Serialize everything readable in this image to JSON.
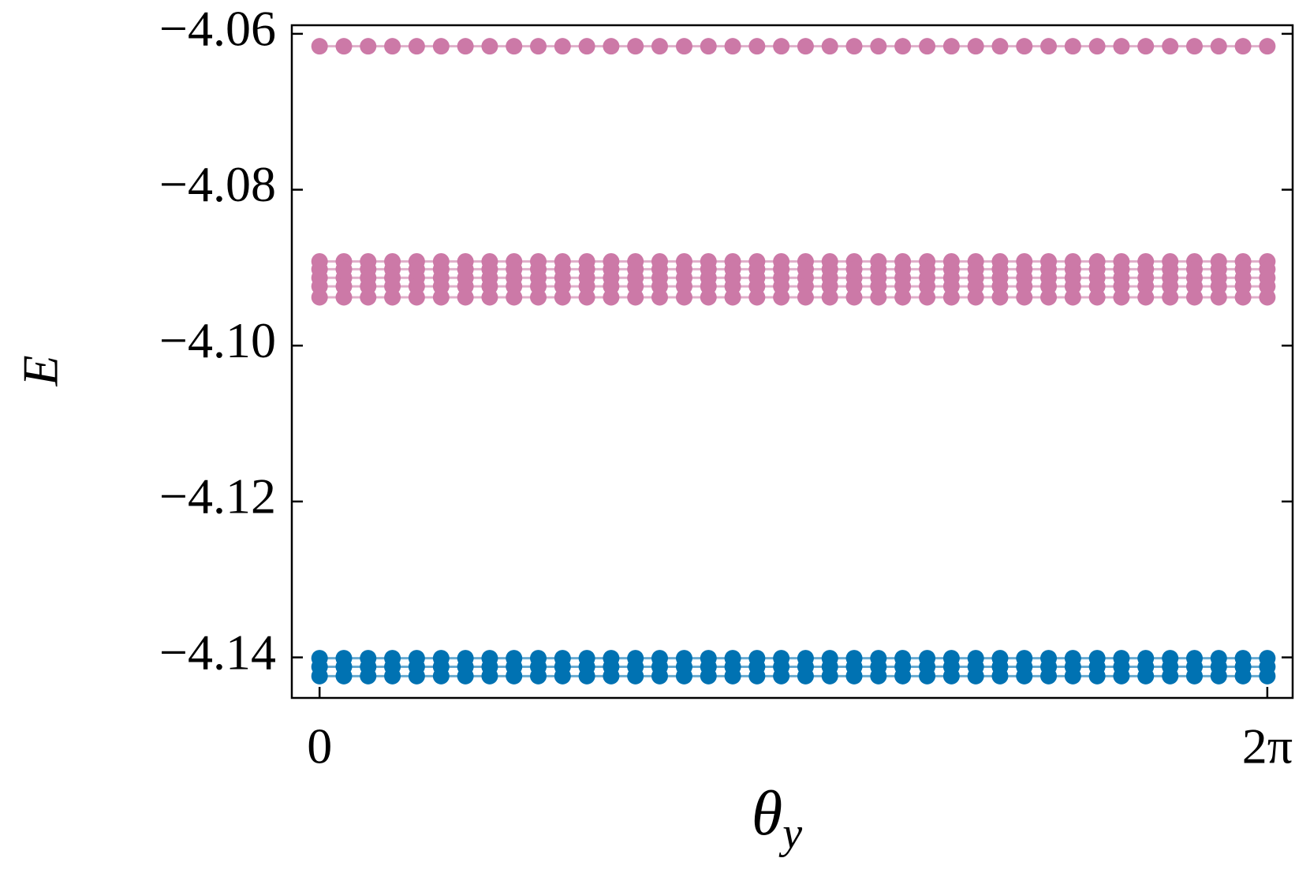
{
  "chart_data": {
    "type": "line",
    "ylabel": "E",
    "xlabel": {
      "symbol": "θ",
      "subscript": "y"
    },
    "x": [
      0,
      0.161,
      0.322,
      0.483,
      0.644,
      0.806,
      0.967,
      1.128,
      1.289,
      1.45,
      1.611,
      1.772,
      1.933,
      2.094,
      2.255,
      2.417,
      2.578,
      2.739,
      2.9,
      3.061,
      3.222,
      3.383,
      3.544,
      3.705,
      3.866,
      4.028,
      4.189,
      4.35,
      4.511,
      4.672,
      4.833,
      4.994,
      5.155,
      5.316,
      5.477,
      5.639,
      5.8,
      5.961,
      6.122,
      6.283
    ],
    "xlim": [
      -0.184,
      6.451
    ],
    "xticks": [
      0,
      {
        "value": 6.283,
        "label": "2π"
      }
    ],
    "ylim": [
      -4.1452,
      -4.0589
    ],
    "yticks": [
      {
        "value": -4.06,
        "label": "−4.06"
      },
      {
        "value": -4.08,
        "label": "−4.08"
      },
      {
        "value": -4.1,
        "label": "−4.10"
      },
      {
        "value": -4.12,
        "label": "−4.12"
      },
      {
        "value": -4.14,
        "label": "−4.14"
      }
    ],
    "grid": false,
    "series": [
      {
        "color": "#cc79a7",
        "values": [
          -4.0616,
          -4.0616,
          -4.0616,
          -4.0616,
          -4.0616,
          -4.0616,
          -4.0616,
          -4.0616,
          -4.0616,
          -4.0616,
          -4.0616,
          -4.0616,
          -4.0616,
          -4.0616,
          -4.0616,
          -4.0616,
          -4.0616,
          -4.0616,
          -4.0616,
          -4.0616,
          -4.0616,
          -4.0616,
          -4.0616,
          -4.0616,
          -4.0616,
          -4.0616,
          -4.0616,
          -4.0616,
          -4.0616,
          -4.0616,
          -4.0616,
          -4.0616,
          -4.0616,
          -4.0616,
          -4.0616,
          -4.0616,
          -4.0616,
          -4.0616,
          -4.0616,
          -4.0616
        ]
      },
      {
        "color": "#cc79a7",
        "values": [
          -4.0892,
          -4.0892,
          -4.0892,
          -4.0892,
          -4.0892,
          -4.0892,
          -4.0892,
          -4.0892,
          -4.0892,
          -4.0892,
          -4.0892,
          -4.0892,
          -4.0892,
          -4.0892,
          -4.0892,
          -4.0892,
          -4.0892,
          -4.0892,
          -4.0892,
          -4.0892,
          -4.0892,
          -4.0892,
          -4.0892,
          -4.0892,
          -4.0892,
          -4.0892,
          -4.0892,
          -4.0892,
          -4.0892,
          -4.0892,
          -4.0892,
          -4.0892,
          -4.0892,
          -4.0892,
          -4.0892,
          -4.0892,
          -4.0892,
          -4.0892,
          -4.0892,
          -4.0892
        ]
      },
      {
        "color": "#cc79a7",
        "values": [
          -4.0902,
          -4.0902,
          -4.0902,
          -4.0902,
          -4.0902,
          -4.0902,
          -4.0902,
          -4.0902,
          -4.0902,
          -4.0902,
          -4.0902,
          -4.0902,
          -4.0902,
          -4.0902,
          -4.0902,
          -4.0902,
          -4.0902,
          -4.0902,
          -4.0902,
          -4.0902,
          -4.0902,
          -4.0902,
          -4.0902,
          -4.0902,
          -4.0902,
          -4.0902,
          -4.0902,
          -4.0902,
          -4.0902,
          -4.0902,
          -4.0902,
          -4.0902,
          -4.0902,
          -4.0902,
          -4.0902,
          -4.0902,
          -4.0902,
          -4.0902,
          -4.0902,
          -4.0902
        ]
      },
      {
        "color": "#cc79a7",
        "values": [
          -4.0913,
          -4.0913,
          -4.0913,
          -4.0913,
          -4.0913,
          -4.0913,
          -4.0913,
          -4.0913,
          -4.0913,
          -4.0913,
          -4.0913,
          -4.0913,
          -4.0913,
          -4.0913,
          -4.0913,
          -4.0913,
          -4.0913,
          -4.0913,
          -4.0913,
          -4.0913,
          -4.0913,
          -4.0913,
          -4.0913,
          -4.0913,
          -4.0913,
          -4.0913,
          -4.0913,
          -4.0913,
          -4.0913,
          -4.0913,
          -4.0913,
          -4.0913,
          -4.0913,
          -4.0913,
          -4.0913,
          -4.0913,
          -4.0913,
          -4.0913,
          -4.0913,
          -4.0913
        ]
      },
      {
        "color": "#cc79a7",
        "values": [
          -4.0924,
          -4.0924,
          -4.0924,
          -4.0924,
          -4.0924,
          -4.0924,
          -4.0924,
          -4.0924,
          -4.0924,
          -4.0924,
          -4.0924,
          -4.0924,
          -4.0924,
          -4.0924,
          -4.0924,
          -4.0924,
          -4.0924,
          -4.0924,
          -4.0924,
          -4.0924,
          -4.0924,
          -4.0924,
          -4.0924,
          -4.0924,
          -4.0924,
          -4.0924,
          -4.0924,
          -4.0924,
          -4.0924,
          -4.0924,
          -4.0924,
          -4.0924,
          -4.0924,
          -4.0924,
          -4.0924,
          -4.0924,
          -4.0924,
          -4.0924,
          -4.0924,
          -4.0924
        ]
      },
      {
        "color": "#cc79a7",
        "values": [
          -4.0938,
          -4.0938,
          -4.0938,
          -4.0938,
          -4.0938,
          -4.0938,
          -4.0938,
          -4.0938,
          -4.0938,
          -4.0938,
          -4.0938,
          -4.0938,
          -4.0938,
          -4.0938,
          -4.0938,
          -4.0938,
          -4.0938,
          -4.0938,
          -4.0938,
          -4.0938,
          -4.0938,
          -4.0938,
          -4.0938,
          -4.0938,
          -4.0938,
          -4.0938,
          -4.0938,
          -4.0938,
          -4.0938,
          -4.0938,
          -4.0938,
          -4.0938,
          -4.0938,
          -4.0938,
          -4.0938,
          -4.0938,
          -4.0938,
          -4.0938,
          -4.0938,
          -4.0938
        ]
      },
      {
        "color": "#0072b2",
        "values": [
          -4.1401,
          -4.1401,
          -4.1401,
          -4.1401,
          -4.1401,
          -4.1401,
          -4.1401,
          -4.1401,
          -4.1401,
          -4.1401,
          -4.1401,
          -4.1401,
          -4.1401,
          -4.1401,
          -4.1401,
          -4.1401,
          -4.1401,
          -4.1401,
          -4.1401,
          -4.1401,
          -4.1401,
          -4.1401,
          -4.1401,
          -4.1401,
          -4.1401,
          -4.1401,
          -4.1401,
          -4.1401,
          -4.1401,
          -4.1401,
          -4.1401,
          -4.1401,
          -4.1401,
          -4.1401,
          -4.1401,
          -4.1401,
          -4.1401,
          -4.1401,
          -4.1401,
          -4.1401
        ]
      },
      {
        "color": "#0072b2",
        "values": [
          -4.1412,
          -4.1412,
          -4.1412,
          -4.1412,
          -4.1412,
          -4.1412,
          -4.1412,
          -4.1412,
          -4.1412,
          -4.1412,
          -4.1412,
          -4.1412,
          -4.1412,
          -4.1412,
          -4.1412,
          -4.1412,
          -4.1412,
          -4.1412,
          -4.1412,
          -4.1412,
          -4.1412,
          -4.1412,
          -4.1412,
          -4.1412,
          -4.1412,
          -4.1412,
          -4.1412,
          -4.1412,
          -4.1412,
          -4.1412,
          -4.1412,
          -4.1412,
          -4.1412,
          -4.1412,
          -4.1412,
          -4.1412,
          -4.1412,
          -4.1412,
          -4.1412,
          -4.1412
        ]
      },
      {
        "color": "#0072b2",
        "values": [
          -4.1424,
          -4.1424,
          -4.1424,
          -4.1424,
          -4.1424,
          -4.1424,
          -4.1424,
          -4.1424,
          -4.1424,
          -4.1424,
          -4.1424,
          -4.1424,
          -4.1424,
          -4.1424,
          -4.1424,
          -4.1424,
          -4.1424,
          -4.1424,
          -4.1424,
          -4.1424,
          -4.1424,
          -4.1424,
          -4.1424,
          -4.1424,
          -4.1424,
          -4.1424,
          -4.1424,
          -4.1424,
          -4.1424,
          -4.1424,
          -4.1424,
          -4.1424,
          -4.1424,
          -4.1424,
          -4.1424,
          -4.1424,
          -4.1424,
          -4.1424,
          -4.1424,
          -4.1424
        ]
      }
    ]
  }
}
